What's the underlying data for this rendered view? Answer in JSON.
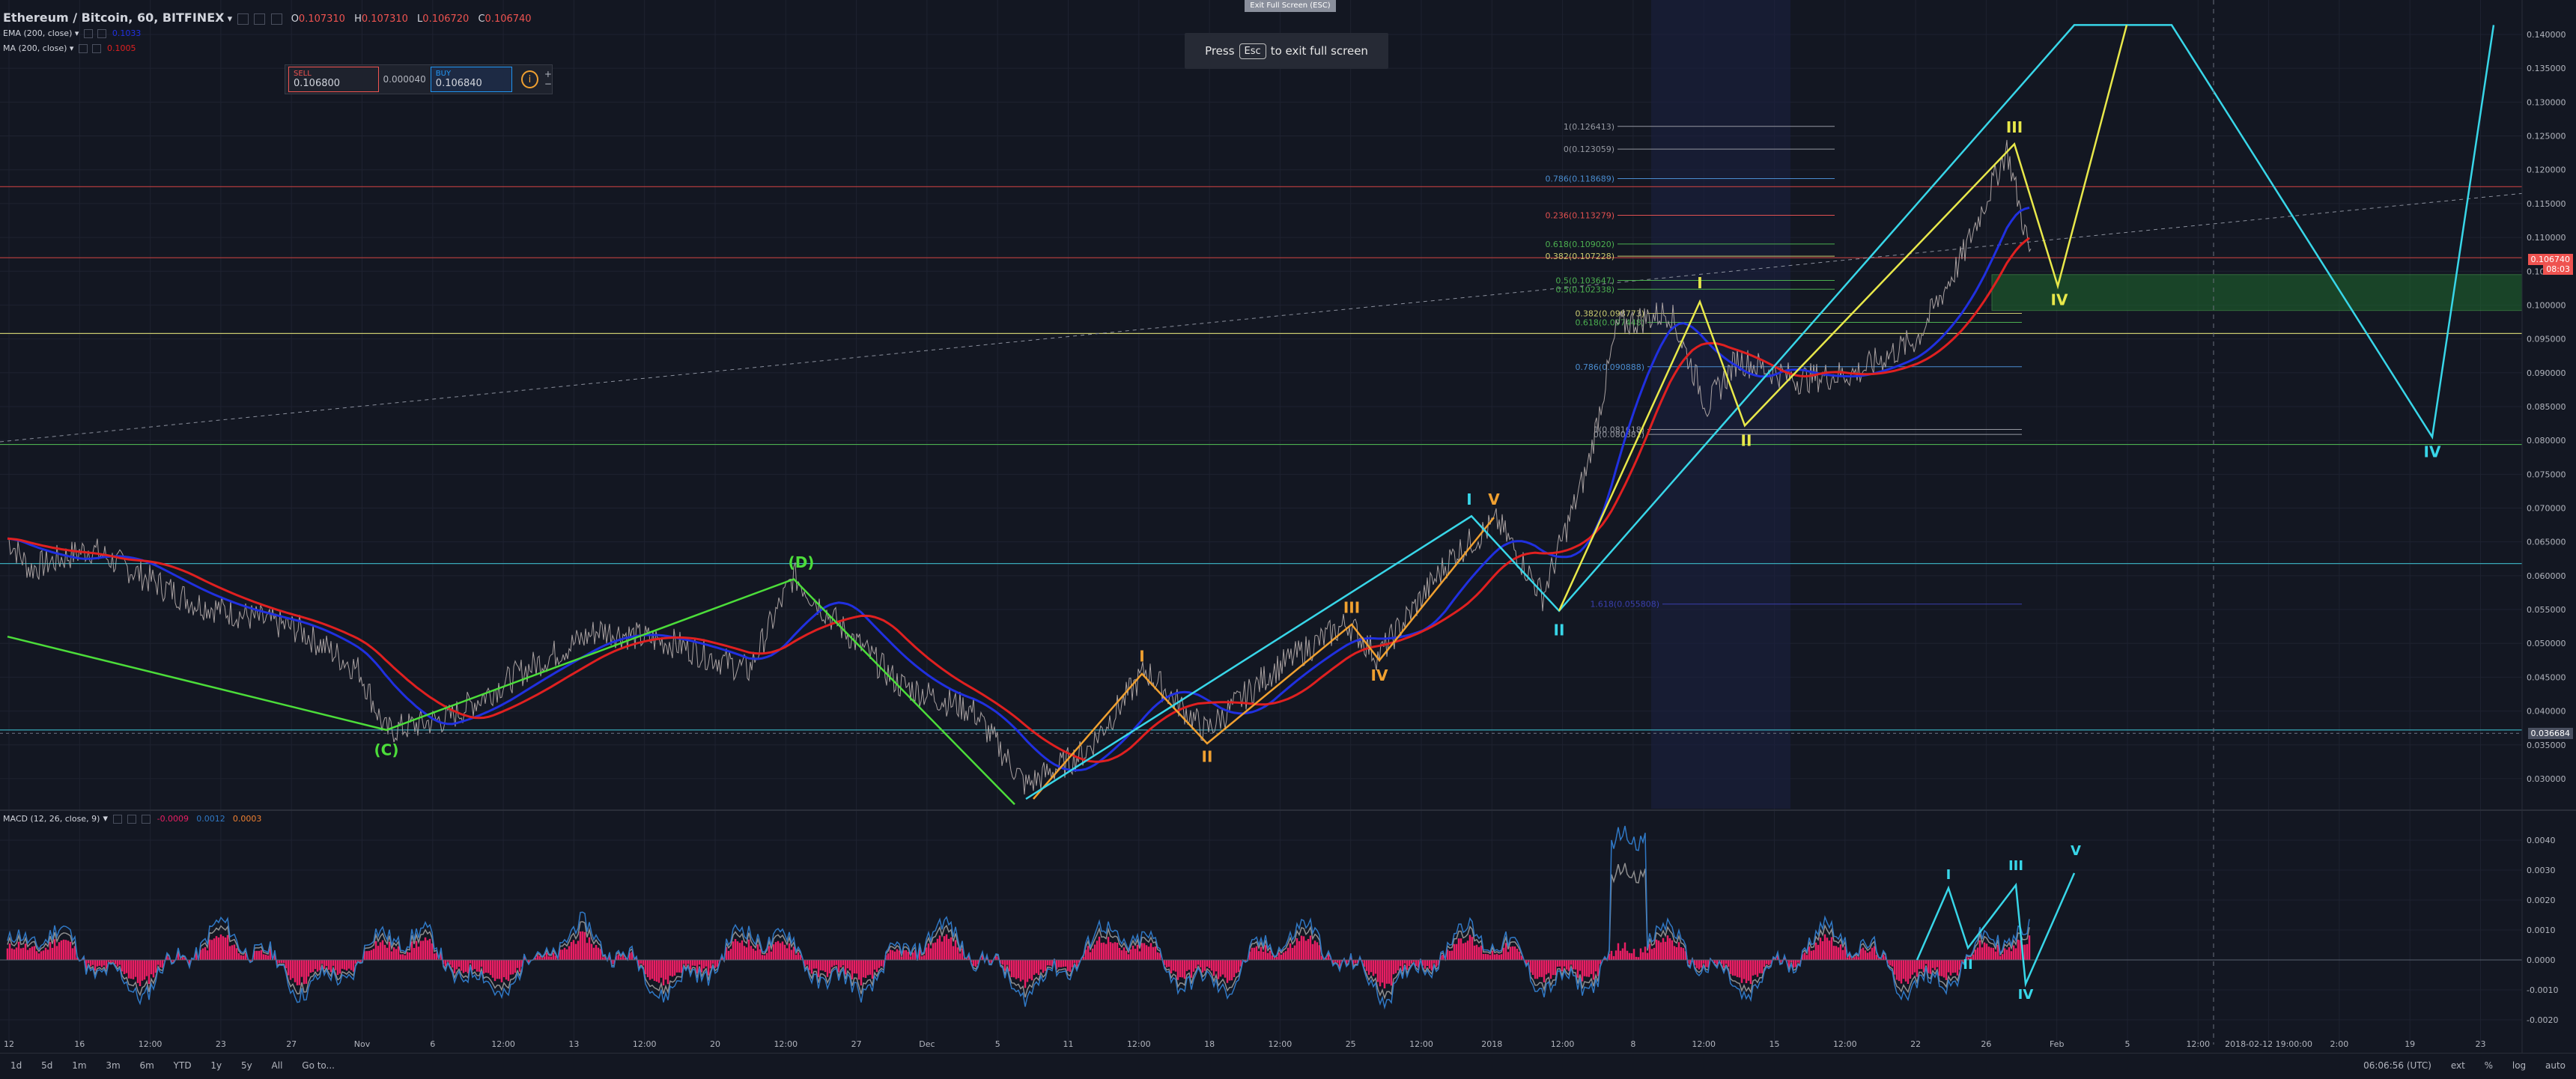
{
  "header": {
    "symbol_title": "Ethereum / Bitcoin, 60, BITFINEX",
    "ohlc": [
      {
        "k": "O",
        "v": "0.107310"
      },
      {
        "k": "H",
        "v": "0.107310"
      },
      {
        "k": "L",
        "v": "0.106720"
      },
      {
        "k": "C",
        "v": "0.106740"
      }
    ]
  },
  "indicators": {
    "ema_label": "EMA (200, close)",
    "ema_value": "0.1033",
    "ma_label": "MA (200, close)",
    "ma_value": "0.1005",
    "macd_label": "MACD (12, 26, close, 9)",
    "macd_values": [
      "-0.0009",
      "0.0012",
      "0.0003"
    ]
  },
  "trade": {
    "sell_label": "SELL",
    "sell_price": "0.106800",
    "spread": "0.000040",
    "buy_label": "BUY",
    "buy_price": "0.106840"
  },
  "fullscreen": {
    "tab_label": "Exit Full Screen (ESC)",
    "press": "Press",
    "key": "Esc",
    "rest": "to exit full screen"
  },
  "price_axis": [
    {
      "label": "0.140000",
      "price": 0.14
    },
    {
      "label": "0.135000",
      "price": 0.135
    },
    {
      "label": "0.130000",
      "price": 0.13
    },
    {
      "label": "0.125000",
      "price": 0.125
    },
    {
      "label": "0.120000",
      "price": 0.12
    },
    {
      "label": "0.115000",
      "price": 0.115
    },
    {
      "label": "0.110000",
      "price": 0.11
    },
    {
      "label": "0.105000",
      "price": 0.105
    },
    {
      "label": "0.100000",
      "price": 0.1
    },
    {
      "label": "0.095000",
      "price": 0.095
    },
    {
      "label": "0.090000",
      "price": 0.09
    },
    {
      "label": "0.085000",
      "price": 0.085
    },
    {
      "label": "0.080000",
      "price": 0.08
    },
    {
      "label": "0.075000",
      "price": 0.075
    },
    {
      "label": "0.070000",
      "price": 0.07
    },
    {
      "label": "0.065000",
      "price": 0.065
    },
    {
      "label": "0.060000",
      "price": 0.06
    },
    {
      "label": "0.055000",
      "price": 0.055
    },
    {
      "label": "0.050000",
      "price": 0.05
    },
    {
      "label": "0.045000",
      "price": 0.045
    },
    {
      "label": "0.040000",
      "price": 0.04
    },
    {
      "label": "0.035000",
      "price": 0.035
    },
    {
      "label": "0.030000",
      "price": 0.03
    }
  ],
  "price_tags": [
    {
      "label": "0.106740",
      "price": 0.10674,
      "color": "#ef5350"
    },
    {
      "label": "08:03",
      "price": 0.1053,
      "color": "#ef5350"
    },
    {
      "label": "0.036684",
      "price": 0.036684,
      "color": "#4a5060"
    }
  ],
  "macd_axis": [
    {
      "label": "0.0040",
      "value": 0.004
    },
    {
      "label": "0.0030",
      "value": 0.003
    },
    {
      "label": "0.0020",
      "value": 0.002
    },
    {
      "label": "0.0010",
      "value": 0.001
    },
    {
      "label": "0.0000",
      "value": 0.0
    },
    {
      "label": "-0.0010",
      "value": -0.001
    },
    {
      "label": "-0.0020",
      "value": -0.002
    }
  ],
  "time_axis": [
    "12",
    "16",
    "12:00",
    "23",
    "27",
    "Nov",
    "6",
    "12:00",
    "13",
    "12:00",
    "20",
    "12:00",
    "27",
    "Dec",
    "5",
    "11",
    "12:00",
    "18",
    "12:00",
    "25",
    "12:00",
    "2018",
    "12:00",
    "8",
    "12:00",
    "15",
    "12:00",
    "22",
    "26",
    "Feb",
    "5",
    "12:00",
    "2018-02-12 19:00:00",
    "2:00",
    "19",
    "23"
  ],
  "bottom_bar": {
    "ranges": [
      "1d",
      "5d",
      "1m",
      "3m",
      "6m",
      "YTD",
      "1y",
      "5y",
      "All",
      "Go to..."
    ],
    "clock": "06:06:56 (UTC)",
    "options": [
      "ext",
      "%",
      "log",
      "auto"
    ]
  },
  "wave_labels": {
    "C": "(C)",
    "D": "(D)",
    "I": "I",
    "II": "II",
    "III": "III",
    "IV": "IV",
    "V": "V"
  },
  "fib_levels": [
    {
      "label": "1(0.126413)",
      "price": 0.126413,
      "color": "#9598a1"
    },
    {
      "label": "0(0.123059)",
      "price": 0.123059,
      "color": "#9598a1"
    },
    {
      "label": "0.786(0.118689)",
      "price": 0.118689,
      "color": "#4a8ccf"
    },
    {
      "label": "0.236(0.113279)",
      "price": 0.113279,
      "color": "#e05050"
    },
    {
      "label": "0.618(0.109020)",
      "price": 0.10902,
      "color": "#4caf50"
    },
    {
      "label": "0.382(0.107228)",
      "price": 0.107228,
      "color": "#c8c86e"
    },
    {
      "label": "0.5(0.103647)",
      "price": 0.103647,
      "color": "#4caf50"
    },
    {
      "label": "0.5(0.102338)",
      "price": 0.102338,
      "color": "#4caf50"
    },
    {
      "label": "0.382(0.098773)",
      "price": 0.098773,
      "color": "#c8c86e"
    },
    {
      "label": "0.618(0.097448)",
      "price": 0.097448,
      "color": "#4caf50"
    },
    {
      "label": "0.786(0.090888)",
      "price": 0.090888,
      "color": "#4a8ccf"
    },
    {
      "label": "0(0.080881)",
      "price": 0.080881,
      "color": "#9598a1"
    },
    {
      "label": "1(0.081618)",
      "price": 0.081618,
      "color": "#9598a1"
    },
    {
      "label": "1.618(0.055808)",
      "price": 0.055808,
      "color": "#3a3fae"
    }
  ],
  "colors": {
    "background": "#131722",
    "grid": "#1e2230",
    "ema": "#2030e0",
    "ma": "#e02020",
    "wave_green": "#4cdd3a",
    "wave_orange": "#f0a030",
    "wave_cyan": "#38d6e8",
    "wave_yellow": "#e8e84a",
    "macd_hist": "#e91e63",
    "macd_line": "#2f78c5",
    "signal_line": "#8e8e8e"
  }
}
